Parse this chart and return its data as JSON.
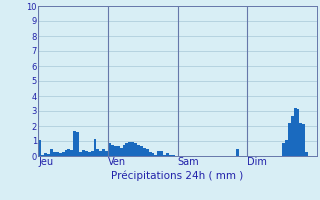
{
  "title": "Précipitations 24h ( mm )",
  "bar_color": "#1a6abf",
  "bg_color": "#d8eef5",
  "grid_color": "#a8c8d8",
  "text_color": "#2222aa",
  "separator_color": "#6677aa",
  "ylim": [
    0,
    10
  ],
  "yticks": [
    0,
    1,
    2,
    3,
    4,
    5,
    6,
    7,
    8,
    9,
    10
  ],
  "day_labels": [
    "Jeu",
    "Ven",
    "Sam",
    "Dim"
  ],
  "day_positions": [
    0,
    24,
    48,
    72
  ],
  "n_bars": 96,
  "values": [
    1.1,
    0.1,
    0.2,
    0.15,
    0.5,
    0.3,
    0.3,
    0.2,
    0.3,
    0.4,
    0.5,
    0.4,
    1.65,
    1.6,
    0.25,
    0.4,
    0.35,
    0.25,
    0.35,
    1.15,
    0.45,
    0.35,
    0.45,
    0.35,
    0.85,
    0.75,
    0.65,
    0.65,
    0.55,
    0.75,
    0.85,
    0.95,
    0.95,
    0.85,
    0.75,
    0.65,
    0.55,
    0.45,
    0.28,
    0.18,
    0.1,
    0.35,
    0.35,
    0.1,
    0.18,
    0.1,
    0.1,
    0.0,
    0.0,
    0.0,
    0.0,
    0.0,
    0.0,
    0.0,
    0.0,
    0.0,
    0.0,
    0.0,
    0.0,
    0.0,
    0.0,
    0.0,
    0.0,
    0.0,
    0.0,
    0.0,
    0.0,
    0.0,
    0.45,
    0.0,
    0.0,
    0.0,
    0.0,
    0.0,
    0.0,
    0.0,
    0.0,
    0.0,
    0.0,
    0.0,
    0.0,
    0.0,
    0.0,
    0.0,
    0.9,
    1.1,
    2.2,
    2.65,
    3.2,
    3.15,
    2.2,
    2.15,
    0.3,
    0.0,
    0.0,
    0.0
  ]
}
